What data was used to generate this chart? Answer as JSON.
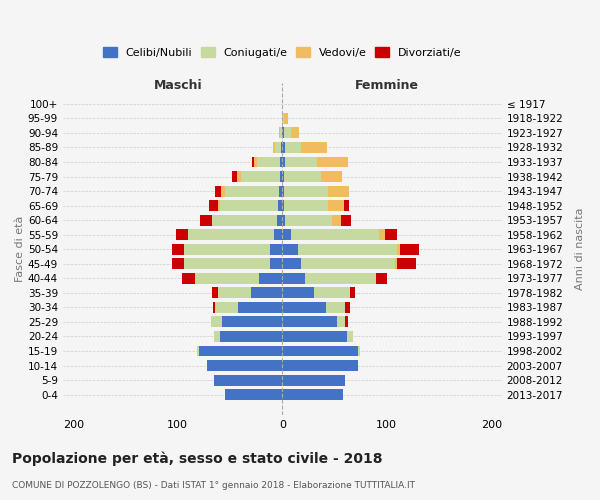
{
  "age_groups": [
    "0-4",
    "5-9",
    "10-14",
    "15-19",
    "20-24",
    "25-29",
    "30-34",
    "35-39",
    "40-44",
    "45-49",
    "50-54",
    "55-59",
    "60-64",
    "65-69",
    "70-74",
    "75-79",
    "80-84",
    "85-89",
    "90-94",
    "95-99",
    "100+"
  ],
  "birth_years": [
    "2013-2017",
    "2008-2012",
    "2003-2007",
    "1998-2002",
    "1993-1997",
    "1988-1992",
    "1983-1987",
    "1978-1982",
    "1973-1977",
    "1968-1972",
    "1963-1967",
    "1958-1962",
    "1953-1957",
    "1948-1952",
    "1943-1947",
    "1938-1942",
    "1933-1937",
    "1928-1932",
    "1923-1927",
    "1918-1922",
    "≤ 1917"
  ],
  "colors": {
    "celibi": "#4472c4",
    "coniugati": "#c5d9a0",
    "vedovi": "#f0bc5e",
    "divorziati": "#cc0000"
  },
  "maschi": {
    "celibi": [
      55,
      65,
      72,
      80,
      60,
      58,
      42,
      30,
      22,
      12,
      12,
      8,
      5,
      4,
      3,
      2,
      2,
      1,
      0,
      0,
      0
    ],
    "coniugati": [
      0,
      0,
      0,
      2,
      5,
      10,
      22,
      32,
      62,
      82,
      82,
      82,
      62,
      56,
      52,
      38,
      22,
      6,
      2,
      0,
      0
    ],
    "vedovi": [
      0,
      0,
      0,
      0,
      0,
      0,
      0,
      0,
      0,
      0,
      0,
      0,
      0,
      2,
      4,
      3,
      3,
      2,
      1,
      0,
      0
    ],
    "divorziati": [
      0,
      0,
      0,
      0,
      0,
      0,
      2,
      5,
      12,
      12,
      12,
      12,
      12,
      8,
      5,
      5,
      2,
      0,
      0,
      0,
      0
    ]
  },
  "femmine": {
    "celibi": [
      58,
      60,
      72,
      72,
      62,
      52,
      42,
      30,
      22,
      18,
      15,
      8,
      3,
      2,
      2,
      2,
      3,
      3,
      2,
      0,
      0
    ],
    "coniugati": [
      0,
      0,
      0,
      2,
      6,
      8,
      18,
      35,
      68,
      90,
      95,
      85,
      45,
      42,
      42,
      35,
      30,
      15,
      6,
      2,
      0
    ],
    "vedovi": [
      0,
      0,
      0,
      0,
      0,
      0,
      0,
      0,
      0,
      2,
      3,
      5,
      8,
      15,
      20,
      20,
      30,
      25,
      8,
      3,
      0
    ],
    "divorziati": [
      0,
      0,
      0,
      0,
      0,
      3,
      5,
      5,
      10,
      18,
      18,
      12,
      10,
      5,
      0,
      0,
      0,
      0,
      0,
      0,
      0
    ]
  },
  "xlim": [
    -210,
    210
  ],
  "xticks": [
    -200,
    -100,
    0,
    100,
    200
  ],
  "xticklabels": [
    "200",
    "100",
    "0",
    "100",
    "200"
  ],
  "title": "Popolazione per età, sesso e stato civile - 2018",
  "subtitle": "COMUNE DI POZZOLENGO (BS) - Dati ISTAT 1° gennaio 2018 - Elaborazione TUTTITALIA.IT",
  "ylabel_left": "Fasce di età",
  "ylabel_right": "Anni di nascita",
  "label_maschi": "Maschi",
  "label_femmine": "Femmine",
  "legend_labels": [
    "Celibi/Nubili",
    "Coniugati/e",
    "Vedovi/e",
    "Divorziati/e"
  ],
  "background_color": "#f5f5f5"
}
